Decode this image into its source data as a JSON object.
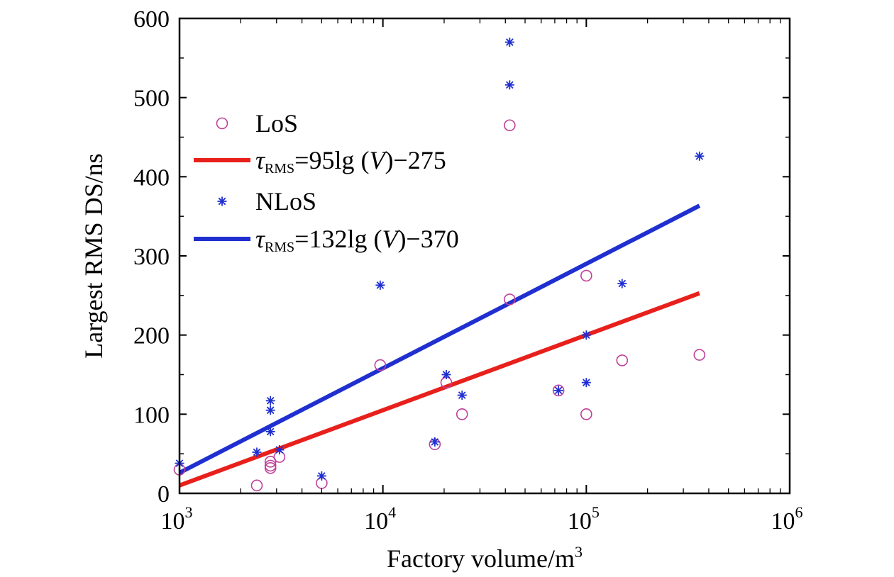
{
  "chart_data": {
    "type": "scatter",
    "xlabel": "Factory volume/m",
    "xlabel_sup": "3",
    "ylabel": "Largest RMS DS/ns",
    "xscale": "log",
    "xlim": [
      1000,
      1000000
    ],
    "ylim": [
      0,
      600
    ],
    "x_ticks": [
      {
        "value": 1000,
        "base": "10",
        "exp": "3"
      },
      {
        "value": 10000,
        "base": "10",
        "exp": "4"
      },
      {
        "value": 100000,
        "base": "10",
        "exp": "5"
      },
      {
        "value": 1000000,
        "base": "10",
        "exp": "6"
      }
    ],
    "y_ticks": [
      0,
      100,
      200,
      300,
      400,
      500,
      600
    ],
    "grid": false,
    "legend_position": "top-left",
    "series": [
      {
        "name": "LoS",
        "kind": "scatter",
        "marker": "circle",
        "color": "#c0409a",
        "points": [
          [
            1000,
            30
          ],
          [
            2400,
            10
          ],
          [
            2800,
            40
          ],
          [
            2800,
            35
          ],
          [
            2800,
            32
          ],
          [
            3100,
            46
          ],
          [
            5000,
            13
          ],
          [
            9700,
            162
          ],
          [
            18000,
            62
          ],
          [
            20500,
            140
          ],
          [
            24500,
            100
          ],
          [
            42000,
            465
          ],
          [
            42000,
            245
          ],
          [
            73000,
            130
          ],
          [
            100000,
            275
          ],
          [
            100000,
            100
          ],
          [
            150000,
            168
          ],
          [
            360000,
            175
          ]
        ]
      },
      {
        "name": "τRMS=95lg (V)−275",
        "kind": "line",
        "color": "#e8201c",
        "fit": {
          "slope": 95,
          "intercept": -275
        },
        "x_range": [
          1000,
          360000
        ],
        "label_parts": {
          "sym": "τ",
          "sub": "RMS",
          "rest_a": "=95lg (",
          "var": "V",
          "rest_b": ")−275"
        }
      },
      {
        "name": "NLoS",
        "kind": "scatter",
        "marker": "asterisk",
        "color": "#1f2fd0",
        "points": [
          [
            1000,
            38
          ],
          [
            2400,
            52
          ],
          [
            2800,
            117
          ],
          [
            2800,
            105
          ],
          [
            2800,
            78
          ],
          [
            3100,
            55
          ],
          [
            5000,
            22
          ],
          [
            9700,
            263
          ],
          [
            18000,
            65
          ],
          [
            20500,
            150
          ],
          [
            24500,
            124
          ],
          [
            42000,
            570
          ],
          [
            42000,
            516
          ],
          [
            73000,
            130
          ],
          [
            100000,
            200
          ],
          [
            100000,
            140
          ],
          [
            150000,
            265
          ],
          [
            360000,
            426
          ]
        ]
      },
      {
        "name": "τRMS=132lg (V)−370",
        "kind": "line",
        "color": "#1f2fd0",
        "fit": {
          "slope": 132,
          "intercept": -370
        },
        "x_range": [
          1000,
          360000
        ],
        "label_parts": {
          "sym": "τ",
          "sub": "RMS",
          "rest_a": "=132lg (",
          "var": "V",
          "rest_b": ")−370"
        }
      }
    ]
  }
}
